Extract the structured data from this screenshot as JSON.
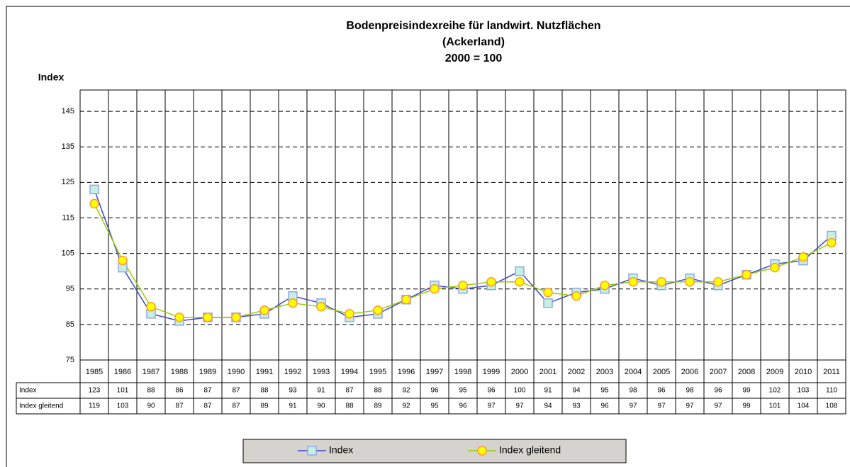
{
  "chart_data": {
    "type": "line",
    "title": [
      "Bodenpreisindexreihe für landwirt. Nutzflächen",
      "(Ackerland)",
      "2000 = 100"
    ],
    "y_label": "Index",
    "categories": [
      "1985",
      "1986",
      "1987",
      "1988",
      "1989",
      "1990",
      "1991",
      "1992",
      "1993",
      "1994",
      "1995",
      "1996",
      "1997",
      "1998",
      "1999",
      "2000",
      "2001",
      "2002",
      "2003",
      "2004",
      "2005",
      "2006",
      "2007",
      "2008",
      "2009",
      "2010",
      "2011"
    ],
    "series": [
      {
        "name": "Index",
        "color": "#3f48cc",
        "marker_color": "#c8f0e0",
        "marker": "square",
        "values": [
          123,
          101,
          88,
          86,
          87,
          87,
          88,
          93,
          91,
          87,
          88,
          92,
          96,
          95,
          96,
          100,
          91,
          94,
          95,
          98,
          96,
          98,
          96,
          99,
          102,
          103,
          110
        ]
      },
      {
        "name": "Index gleitend",
        "color": "#99cc00",
        "marker_color": "#ffff00",
        "marker": "circle",
        "values": [
          119,
          103,
          90,
          87,
          87,
          87,
          89,
          91,
          90,
          88,
          89,
          92,
          95,
          96,
          97,
          97,
          94,
          93,
          96,
          97,
          97,
          97,
          97,
          99,
          101,
          104,
          108
        ]
      }
    ],
    "ylim": [
      75,
      151
    ],
    "yticks": [
      75,
      85,
      95,
      105,
      115,
      125,
      135,
      145
    ],
    "grid": true
  }
}
